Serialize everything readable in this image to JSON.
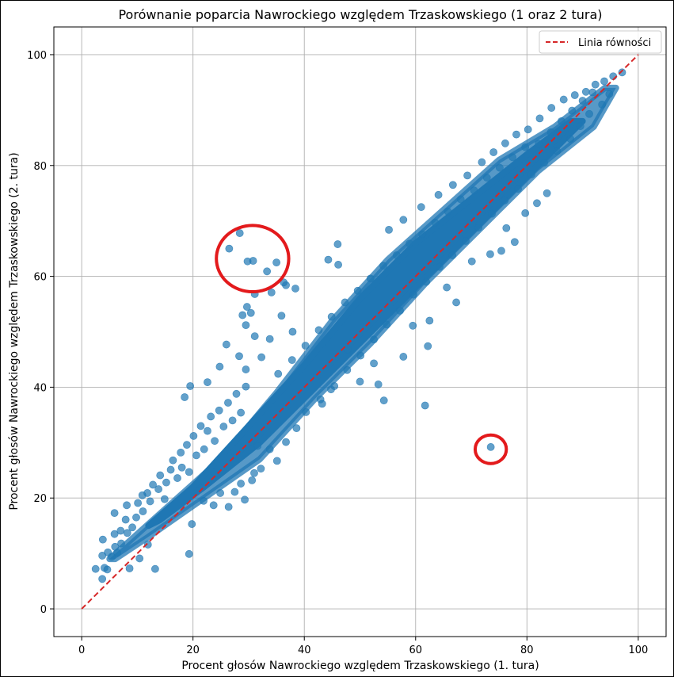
{
  "chart_data": {
    "type": "scatter",
    "title": "Porównanie poparcia Nawrockiego względem Trzaskowskiego (1 oraz 2 tura)",
    "xlabel": "Procent głosów Nawrockiego względem Trzaskowskiego (1. tura)",
    "ylabel": "Procent głosów Nawrockiego względem Trzaskowskiego (2. tura)",
    "xlim": [
      -5,
      105
    ],
    "ylim": [
      -5,
      105
    ],
    "xticks": [
      "0",
      "20",
      "40",
      "60",
      "80",
      "100"
    ],
    "yticks": [
      "0",
      "20",
      "40",
      "60",
      "80",
      "100"
    ],
    "grid": true,
    "legend_position": "top-right",
    "point_color": "#1f77b4",
    "series": [
      {
        "name": "",
        "color": "#1f77b4",
        "points": [
          [
            2.5,
            7.2
          ],
          [
            3.7,
            5.4
          ],
          [
            4.1,
            7.4
          ],
          [
            4.6,
            7.1
          ],
          [
            3.7,
            9.6
          ],
          [
            4.7,
            10.2
          ],
          [
            3.8,
            12.5
          ],
          [
            5.4,
            9.4
          ],
          [
            6.0,
            11.2
          ],
          [
            6.4,
            10.1
          ],
          [
            5.9,
            13.5
          ],
          [
            7.1,
            11.8
          ],
          [
            7.0,
            14.1
          ],
          [
            8.2,
            13.7
          ],
          [
            5.9,
            17.3
          ],
          [
            8.1,
            18.7
          ],
          [
            7.9,
            16.1
          ],
          [
            9.1,
            14.7
          ],
          [
            9.8,
            16.5
          ],
          [
            10.1,
            19.1
          ],
          [
            10.9,
            20.5
          ],
          [
            11.0,
            17.6
          ],
          [
            11.8,
            20.9
          ],
          [
            12.3,
            19.4
          ],
          [
            12.8,
            22.4
          ],
          [
            13.8,
            21.6
          ],
          [
            14.1,
            24.1
          ],
          [
            14.9,
            19.8
          ],
          [
            15.2,
            22.8
          ],
          [
            16.0,
            25.1
          ],
          [
            16.4,
            26.8
          ],
          [
            17.2,
            23.6
          ],
          [
            17.8,
            28.2
          ],
          [
            18.0,
            25.5
          ],
          [
            18.9,
            29.6
          ],
          [
            19.3,
            24.7
          ],
          [
            20.1,
            31.2
          ],
          [
            20.6,
            27.7
          ],
          [
            21.4,
            33.0
          ],
          [
            22.0,
            28.8
          ],
          [
            22.6,
            32.1
          ],
          [
            23.2,
            34.7
          ],
          [
            23.9,
            30.3
          ],
          [
            24.7,
            35.8
          ],
          [
            25.5,
            32.9
          ],
          [
            26.3,
            37.2
          ],
          [
            27.1,
            34.0
          ],
          [
            27.8,
            38.8
          ],
          [
            28.6,
            35.4
          ],
          [
            29.5,
            40.1
          ],
          [
            8.6,
            7.3
          ],
          [
            10.4,
            9.1
          ],
          [
            11.9,
            11.6
          ],
          [
            13.2,
            7.2
          ],
          [
            19.3,
            9.9
          ],
          [
            19.8,
            15.3
          ],
          [
            21.9,
            19.5
          ],
          [
            23.7,
            18.7
          ],
          [
            24.9,
            20.9
          ],
          [
            26.4,
            18.4
          ],
          [
            27.5,
            21.1
          ],
          [
            28.6,
            22.6
          ],
          [
            29.3,
            19.7
          ],
          [
            30.6,
            23.2
          ],
          [
            31.0,
            24.5
          ],
          [
            18.5,
            38.2
          ],
          [
            19.5,
            40.2
          ],
          [
            22.6,
            40.9
          ],
          [
            24.8,
            43.7
          ],
          [
            26.0,
            47.7
          ],
          [
            28.3,
            45.6
          ],
          [
            29.5,
            43.2
          ],
          [
            31.1,
            49.2
          ],
          [
            32.3,
            45.4
          ],
          [
            33.8,
            48.7
          ],
          [
            28.9,
            53.0
          ],
          [
            29.7,
            54.5
          ],
          [
            31.1,
            56.8
          ],
          [
            34.1,
            57.1
          ],
          [
            35.9,
            52.9
          ],
          [
            29.5,
            51.2
          ],
          [
            36.7,
            58.4
          ],
          [
            38.4,
            57.8
          ],
          [
            37.9,
            50.0
          ],
          [
            30.4,
            53.4
          ],
          [
            26.5,
            65.0
          ],
          [
            28.4,
            67.8
          ],
          [
            29.8,
            62.7
          ],
          [
            30.8,
            62.8
          ],
          [
            33.3,
            60.9
          ],
          [
            35.0,
            62.5
          ],
          [
            36.3,
            58.9
          ],
          [
            44.3,
            63.0
          ],
          [
            46.1,
            62.1
          ],
          [
            46.0,
            65.8
          ],
          [
            73.5,
            29.2
          ],
          [
            54.3,
            37.6
          ],
          [
            61.7,
            36.7
          ],
          [
            62.2,
            47.4
          ],
          [
            50.0,
            41.0
          ],
          [
            52.5,
            44.3
          ],
          [
            53.3,
            40.5
          ],
          [
            47.8,
            46.8
          ],
          [
            44.8,
            39.6
          ],
          [
            42.9,
            37.8
          ],
          [
            40.3,
            35.5
          ],
          [
            38.6,
            32.6
          ],
          [
            36.7,
            30.1
          ],
          [
            35.1,
            26.7
          ],
          [
            33.8,
            28.8
          ],
          [
            32.2,
            25.3
          ],
          [
            31.6,
            29.4
          ],
          [
            57.8,
            45.5
          ],
          [
            59.5,
            51.1
          ],
          [
            62.5,
            52.0
          ],
          [
            65.6,
            58.0
          ],
          [
            67.3,
            55.3
          ],
          [
            70.1,
            62.7
          ],
          [
            73.4,
            64.0
          ],
          [
            75.4,
            64.6
          ],
          [
            77.8,
            66.2
          ],
          [
            76.3,
            68.7
          ],
          [
            79.7,
            71.4
          ],
          [
            81.8,
            73.2
          ],
          [
            83.6,
            75.0
          ],
          [
            55.2,
            68.4
          ],
          [
            57.8,
            70.2
          ],
          [
            61.0,
            72.5
          ],
          [
            64.1,
            74.7
          ],
          [
            66.7,
            76.5
          ],
          [
            69.3,
            78.2
          ],
          [
            71.9,
            80.6
          ],
          [
            74.0,
            82.4
          ],
          [
            76.1,
            84.0
          ],
          [
            78.1,
            85.6
          ],
          [
            80.2,
            86.5
          ],
          [
            82.3,
            88.5
          ],
          [
            84.4,
            90.4
          ],
          [
            86.6,
            91.9
          ],
          [
            88.6,
            92.7
          ],
          [
            90.6,
            93.3
          ],
          [
            92.3,
            94.6
          ],
          [
            93.9,
            95.2
          ],
          [
            95.5,
            96.1
          ],
          [
            97.1,
            96.8
          ],
          [
            35.3,
            42.4
          ],
          [
            37.8,
            44.9
          ],
          [
            40.2,
            47.5
          ],
          [
            42.6,
            50.3
          ],
          [
            44.9,
            52.7
          ],
          [
            47.3,
            55.3
          ],
          [
            49.6,
            57.4
          ],
          [
            51.9,
            59.6
          ],
          [
            54.2,
            61.9
          ],
          [
            56.6,
            63.8
          ],
          [
            58.9,
            65.9
          ],
          [
            61.2,
            67.6
          ],
          [
            63.5,
            69.7
          ],
          [
            65.8,
            71.7
          ],
          [
            68.1,
            73.9
          ],
          [
            70.5,
            75.5
          ],
          [
            72.8,
            77.8
          ],
          [
            75.1,
            79.6
          ],
          [
            77.4,
            81.5
          ],
          [
            79.7,
            83.3
          ],
          [
            43.2,
            37.0
          ],
          [
            45.4,
            40.2
          ],
          [
            47.7,
            43.1
          ],
          [
            50.1,
            45.7
          ],
          [
            52.5,
            48.6
          ],
          [
            54.8,
            51.3
          ],
          [
            57.2,
            53.8
          ],
          [
            59.6,
            56.7
          ],
          [
            61.9,
            59.0
          ],
          [
            64.3,
            61.7
          ],
          [
            66.6,
            63.8
          ],
          [
            69.0,
            66.4
          ],
          [
            71.3,
            68.8
          ],
          [
            73.7,
            71.3
          ],
          [
            76.0,
            73.7
          ],
          [
            78.4,
            75.8
          ],
          [
            80.8,
            78.4
          ],
          [
            83.1,
            80.5
          ],
          [
            85.4,
            82.6
          ],
          [
            87.8,
            84.8
          ],
          [
            89.6,
            87.1
          ],
          [
            91.2,
            89.3
          ],
          [
            93.5,
            91.0
          ],
          [
            94.8,
            92.9
          ],
          [
            86.2,
            88.0
          ],
          [
            88.1,
            89.9
          ],
          [
            90.0,
            91.7
          ],
          [
            91.8,
            93.2
          ],
          [
            84.3,
            86.0
          ],
          [
            82.1,
            83.9
          ]
        ]
      }
    ],
    "reference_line": {
      "name": "Linia równości",
      "color": "#d62728",
      "x": [
        0,
        100
      ],
      "y": [
        0,
        100
      ],
      "style": "dashed"
    },
    "annotations": [
      {
        "type": "circle",
        "color": "#e31a1c",
        "center": [
          30.7,
          63.2
        ],
        "radius_data": 6.5
      },
      {
        "type": "circle",
        "color": "#e31a1c",
        "center": [
          73.5,
          28.8
        ],
        "radius_data": 2.8
      }
    ]
  }
}
